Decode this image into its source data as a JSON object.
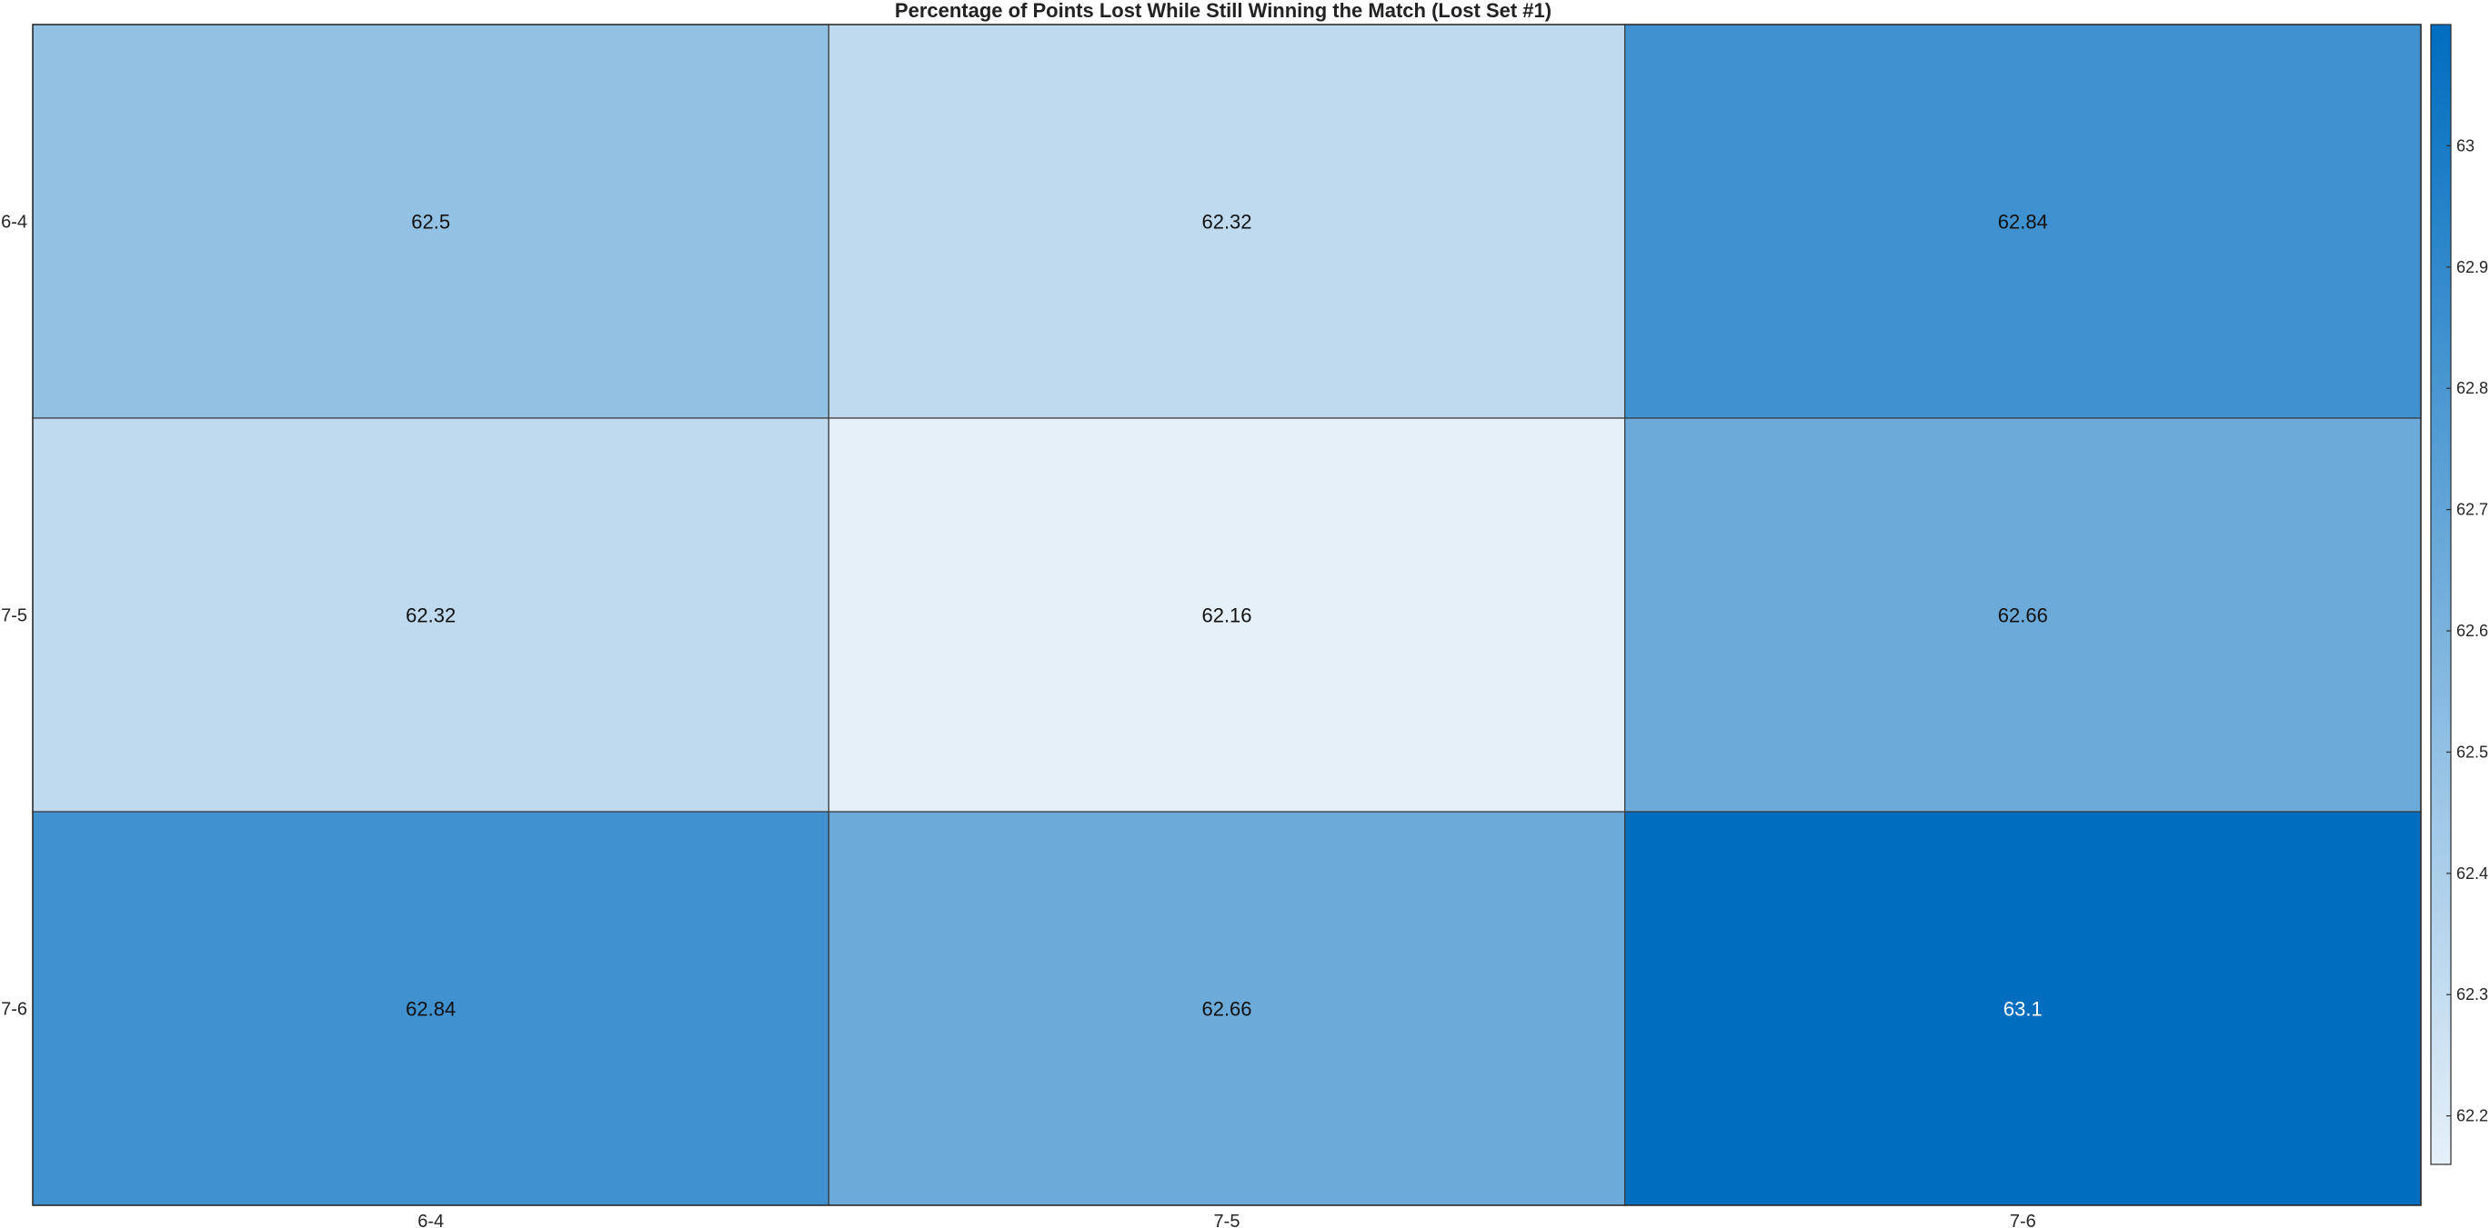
{
  "chart_data": {
    "type": "heatmap",
    "title": "Percentage of Points Lost While Still Winning the Match (Lost Set #1)",
    "x_categories": [
      "6-4",
      "7-5",
      "7-6"
    ],
    "y_categories": [
      "6-4",
      "7-5",
      "7-6"
    ],
    "values": [
      [
        62.5,
        62.32,
        62.84
      ],
      [
        62.32,
        62.16,
        62.66
      ],
      [
        62.84,
        62.66,
        63.1
      ]
    ],
    "value_labels": [
      [
        "62.5",
        "62.32",
        "62.84"
      ],
      [
        "62.32",
        "62.16",
        "62.66"
      ],
      [
        "62.84",
        "62.66",
        "63.1"
      ]
    ],
    "xlabel": "",
    "ylabel": "",
    "colorbar": {
      "range": [
        62.16,
        63.1
      ],
      "ticks": [
        62.2,
        62.3,
        62.4,
        62.5,
        62.6,
        62.7,
        62.8,
        62.9,
        63
      ],
      "tick_labels": [
        "62.2",
        "62.3",
        "62.4",
        "62.5",
        "62.6",
        "62.7",
        "62.8",
        "62.9",
        "63"
      ],
      "placement": "right",
      "color_low": "#e6f0f9",
      "color_high": "#006dbf"
    },
    "grid": false
  }
}
